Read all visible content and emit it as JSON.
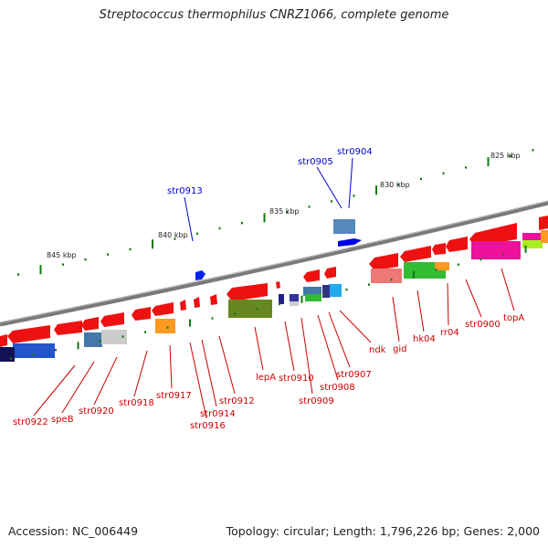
{
  "title": "Streptococcus thermophilus CNRZ1066, complete genome",
  "footer": {
    "accession": "Accession: NC_006449",
    "stats": "Topology: circular; Length: 1,796,226 bp; Genes: 2,000"
  },
  "scale_labels": [
    "825 kbp",
    "830 kbp",
    "835 kbp",
    "840 kbp",
    "845 kbp"
  ],
  "labels_top": [
    "str0904",
    "str0905",
    "str0913"
  ],
  "labels_bottom": [
    "topA",
    "str0900",
    "rr04",
    "hk04",
    "gid",
    "ndk",
    "str0907",
    "str0908",
    "str0909",
    "str0910",
    "lepA",
    "str0912",
    "str0914",
    "str0916",
    "str0917",
    "str0918",
    "str0920",
    "speB",
    "str0922"
  ],
  "colors": {
    "label_red": "#cc0000",
    "label_blue": "#0000cc",
    "gene_red": "#ee1111",
    "backbone": "#888888"
  }
}
